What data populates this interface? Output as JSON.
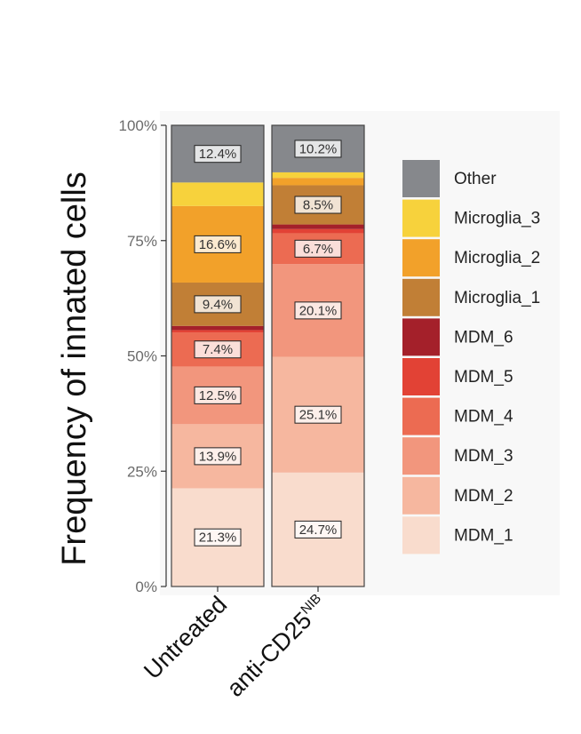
{
  "chart_data": {
    "type": "bar",
    "stacked": true,
    "title": "",
    "ylabel": "Frequency of innated cells",
    "xlabel": "",
    "ylim": [
      0,
      100
    ],
    "yticks": [
      "0%",
      "25%",
      "50%",
      "75%",
      "100%"
    ],
    "categories": [
      {
        "name": "Untreated",
        "sup": ""
      },
      {
        "name": "anti-CD25",
        "sup": "NIB"
      }
    ],
    "series": [
      {
        "name": "MDM_1",
        "color": "#f9dccd",
        "values": [
          21.3,
          24.7
        ],
        "labels": [
          "21.3%",
          "24.7%"
        ]
      },
      {
        "name": "MDM_2",
        "color": "#f6b79f",
        "values": [
          13.9,
          25.1
        ],
        "labels": [
          "13.9%",
          "25.1%"
        ]
      },
      {
        "name": "MDM_3",
        "color": "#f2967d",
        "values": [
          12.5,
          20.1
        ],
        "labels": [
          "12.5%",
          "20.1%"
        ]
      },
      {
        "name": "MDM_4",
        "color": "#ec6b52",
        "values": [
          7.4,
          6.7
        ],
        "labels": [
          "7.4%",
          "6.7%"
        ]
      },
      {
        "name": "MDM_5",
        "color": "#e24235",
        "values": [
          0.5,
          0.9
        ],
        "labels": [
          "",
          ""
        ]
      },
      {
        "name": "MDM_6",
        "color": "#a4202a",
        "values": [
          0.9,
          1.0
        ],
        "labels": [
          "",
          ""
        ]
      },
      {
        "name": "Microglia_1",
        "color": "#c17f36",
        "values": [
          9.4,
          8.5
        ],
        "labels": [
          "9.4%",
          "8.5%"
        ]
      },
      {
        "name": "Microglia_2",
        "color": "#f2a12a",
        "values": [
          16.6,
          1.6
        ],
        "labels": [
          "16.6%",
          ""
        ]
      },
      {
        "name": "Microglia_3",
        "color": "#f7d23c",
        "values": [
          5.1,
          1.2
        ],
        "labels": [
          "",
          ""
        ]
      },
      {
        "name": "Other",
        "color": "#86888c",
        "values": [
          12.4,
          10.2
        ],
        "labels": [
          "12.4%",
          "10.2%"
        ]
      }
    ],
    "legend_position": "right"
  }
}
